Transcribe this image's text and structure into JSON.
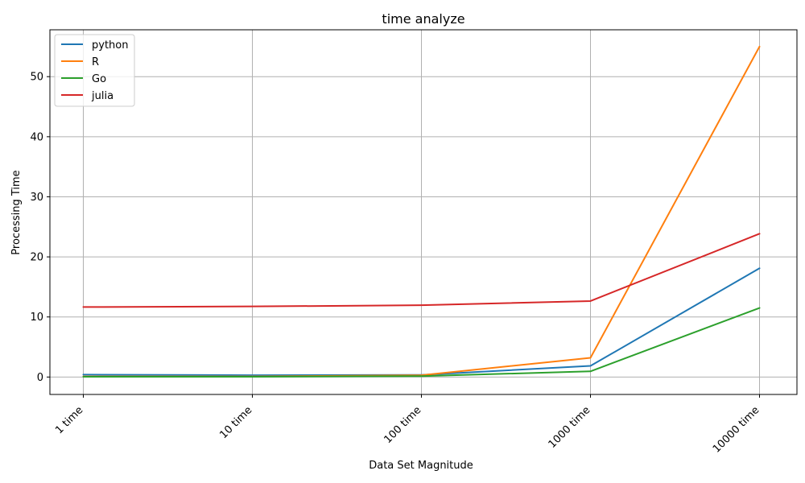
{
  "chart_data": {
    "type": "line",
    "title": "time analyze",
    "xlabel": "Data Set Magnitude",
    "ylabel": "Processing Time",
    "categories": [
      "1 time",
      "10 time",
      "100 time",
      "1000 time",
      "10000 time"
    ],
    "ylim": [
      -2.9,
      57.8
    ],
    "yticks": [
      0,
      10,
      20,
      30,
      40,
      50
    ],
    "grid": true,
    "legend_position": "top-left",
    "series": [
      {
        "name": "python",
        "color": "#1f77b4",
        "values": [
          0.4,
          0.3,
          0.35,
          1.85,
          18.1
        ]
      },
      {
        "name": "R",
        "color": "#ff7f0e",
        "values": [
          0.1,
          0.1,
          0.3,
          3.2,
          55.0
        ]
      },
      {
        "name": "Go",
        "color": "#2ca02c",
        "values": [
          0.05,
          0.05,
          0.15,
          0.95,
          11.5
        ]
      },
      {
        "name": "julia",
        "color": "#d62728",
        "values": [
          11.65,
          11.75,
          11.95,
          12.65,
          23.85
        ]
      }
    ]
  }
}
